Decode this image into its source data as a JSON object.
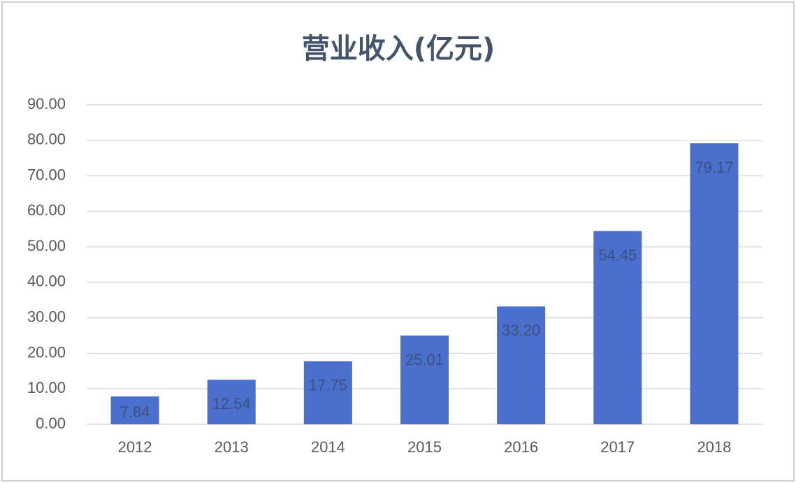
{
  "chart_data": {
    "type": "bar",
    "title": "营业收入(亿元)",
    "categories": [
      "2012",
      "2013",
      "2014",
      "2015",
      "2016",
      "2017",
      "2018"
    ],
    "values": [
      7.84,
      12.54,
      17.75,
      25.01,
      33.2,
      54.45,
      79.17
    ],
    "value_labels": [
      "7.84",
      "12.54",
      "17.75",
      "25.01",
      "33.20",
      "54.45",
      "79.17"
    ],
    "color": "#4a6fcc",
    "ylim": [
      0,
      90
    ],
    "yticks": [
      {
        "value": 0,
        "label": "0.00"
      },
      {
        "value": 10,
        "label": "10.00"
      },
      {
        "value": 20,
        "label": "20.00"
      },
      {
        "value": 30,
        "label": "30.00"
      },
      {
        "value": 40,
        "label": "40.00"
      },
      {
        "value": 50,
        "label": "50.00"
      },
      {
        "value": 60,
        "label": "60.00"
      },
      {
        "value": 70,
        "label": "70.00"
      },
      {
        "value": 80,
        "label": "80.00"
      },
      {
        "value": 90,
        "label": "90.00"
      }
    ],
    "grid": true
  }
}
